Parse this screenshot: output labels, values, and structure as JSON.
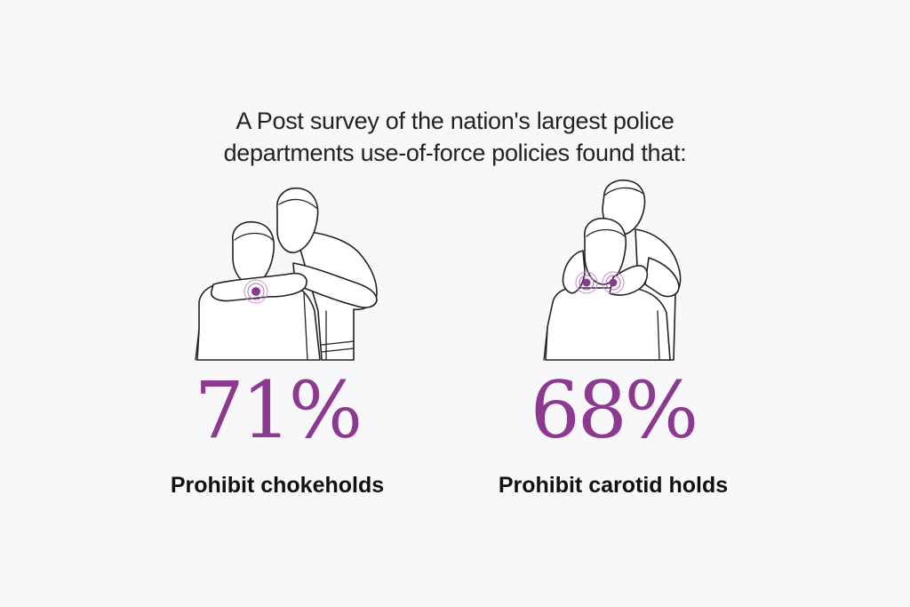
{
  "headline": {
    "line1": "A Post survey of the nation's largest police",
    "line2": "departments use-of-force policies found that:"
  },
  "accent_color": "#8b3a8f",
  "stats": [
    {
      "value": "71%",
      "label": "Prohibit chokeholds",
      "illustration": "chokehold-illustration"
    },
    {
      "value": "68%",
      "label": "Prohibit carotid holds",
      "illustration": "carotid-hold-illustration"
    }
  ]
}
